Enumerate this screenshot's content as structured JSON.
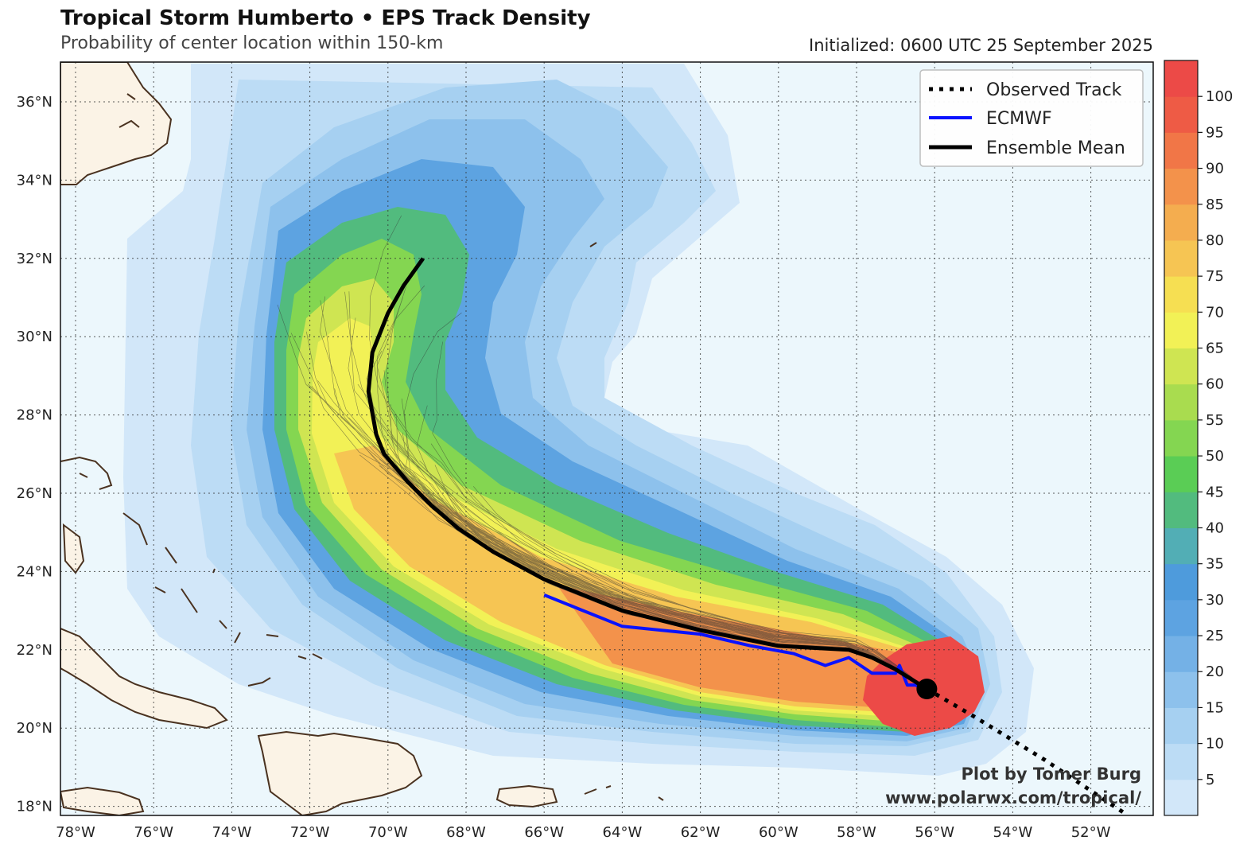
{
  "header": {
    "title": "Tropical Storm Humberto • EPS Track Density",
    "subtitle": "Probability of center location within 150-km",
    "initialized": "Initialized: 0600 UTC 25 September 2025"
  },
  "legend": {
    "observed": "Observed Track",
    "ecmwf": "ECMWF",
    "mean": "Ensemble Mean"
  },
  "credit": {
    "line1": "Plot by Tomer Burg",
    "line2": "www.polarwx.com/tropical/"
  },
  "axes": {
    "lon_labels": [
      "78°W",
      "76°W",
      "74°W",
      "72°W",
      "70°W",
      "68°W",
      "66°W",
      "64°W",
      "62°W",
      "60°W",
      "58°W",
      "56°W",
      "54°W",
      "52°W"
    ],
    "lat_labels": [
      "36°N",
      "34°N",
      "32°N",
      "30°N",
      "28°N",
      "26°N",
      "24°N",
      "22°N",
      "20°N",
      "18°N"
    ]
  },
  "colorbar": {
    "ticks": [
      "100",
      "95",
      "90",
      "85",
      "80",
      "75",
      "70",
      "65",
      "60",
      "55",
      "50",
      "45",
      "40",
      "35",
      "30",
      "25",
      "20",
      "15",
      "10",
      "5"
    ],
    "colors": [
      "#d2e7f9",
      "#bcdcf5",
      "#a6d0f1",
      "#8dc1ec",
      "#74b1e6",
      "#5da3e1",
      "#4e9bdc",
      "#52aeb5",
      "#52bb7e",
      "#5acd55",
      "#84d651",
      "#a9dc4f",
      "#cfe552",
      "#f2f156",
      "#f6df52",
      "#f6c553",
      "#f4ad4f",
      "#f3924b",
      "#f17647",
      "#ee5b45",
      "#ec4a47"
    ]
  },
  "map": {
    "storm_center": {
      "lon": -56.2,
      "lat": 21.0
    },
    "ensemble_mean_track": [
      [
        -56.2,
        21.0
      ],
      [
        -57.0,
        21.5
      ],
      [
        -57.6,
        21.8
      ],
      [
        -58.2,
        22.0
      ],
      [
        -60.0,
        22.1
      ],
      [
        -62.0,
        22.5
      ],
      [
        -64.0,
        23.0
      ],
      [
        -66.0,
        23.8
      ],
      [
        -67.3,
        24.5
      ],
      [
        -68.2,
        25.1
      ],
      [
        -68.9,
        25.7
      ],
      [
        -69.5,
        26.3
      ],
      [
        -70.1,
        27.0
      ],
      [
        -70.3,
        27.5
      ],
      [
        -70.5,
        28.6
      ],
      [
        -70.4,
        29.6
      ],
      [
        -70.0,
        30.6
      ],
      [
        -69.6,
        31.3
      ],
      [
        -69.1,
        32.0
      ]
    ],
    "ecmwf_track": [
      [
        -56.2,
        21.0
      ],
      [
        -56.5,
        21.1
      ],
      [
        -56.7,
        21.1
      ],
      [
        -56.9,
        21.6
      ],
      [
        -57.0,
        21.4
      ],
      [
        -57.6,
        21.4
      ],
      [
        -58.2,
        21.8
      ],
      [
        -58.8,
        21.6
      ],
      [
        -59.6,
        21.9
      ],
      [
        -60.7,
        22.1
      ],
      [
        -62.0,
        22.4
      ],
      [
        -64.0,
        22.6
      ],
      [
        -65.0,
        23.0
      ],
      [
        -66.0,
        23.4
      ]
    ],
    "observed_track": [
      [
        -56.2,
        21.0
      ],
      [
        -55.0,
        20.3
      ],
      [
        -53.2,
        19.2
      ],
      [
        -51.1,
        17.8
      ]
    ],
    "colors": {
      "ocean": "#ecf7fc",
      "land": "#fbf3e6",
      "coast": "#4a3220",
      "ecmwf": "#0a12ff",
      "mean": "#000000"
    }
  }
}
